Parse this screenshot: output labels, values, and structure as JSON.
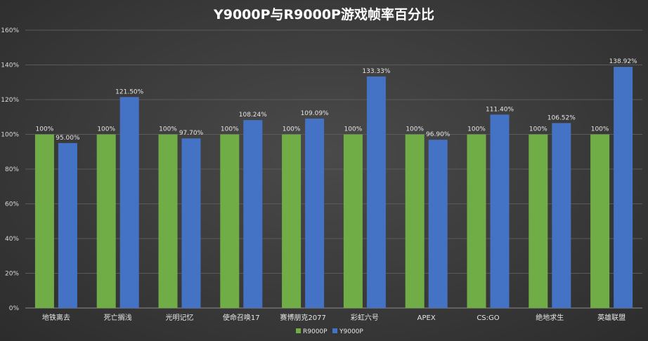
{
  "chart_data": {
    "type": "bar",
    "title": "Y9000P与R9000P游戏帧率百分比",
    "categories": [
      "地铁离去",
      "死亡搁浅",
      "光明记忆",
      "使命召唤17",
      "赛博朋克2077",
      "彩虹六号",
      "APEX",
      "CS:GO",
      "绝地求生",
      "英雄联盟"
    ],
    "series": [
      {
        "name": "R9000P",
        "color": "#70ad47",
        "values": [
          100,
          100,
          100,
          100,
          100,
          100,
          100,
          100,
          100,
          100
        ],
        "labels": [
          "100%",
          "100%",
          "100%",
          "100%",
          "100%",
          "100%",
          "100%",
          "100%",
          "100%",
          "100%"
        ]
      },
      {
        "name": "Y9000P",
        "color": "#4472c4",
        "values": [
          95.0,
          121.5,
          97.7,
          108.24,
          109.09,
          133.33,
          96.9,
          111.4,
          106.52,
          138.92
        ],
        "labels": [
          "95.00%",
          "121.50%",
          "97.70%",
          "108.24%",
          "109.09%",
          "133.33%",
          "96.90%",
          "111.40%",
          "106.52%",
          "138.92%"
        ]
      }
    ],
    "ylim": [
      0,
      160
    ],
    "yticks": [
      0,
      20,
      40,
      60,
      80,
      100,
      120,
      140,
      160
    ],
    "ytick_labels": [
      "0%",
      "20%",
      "40%",
      "60%",
      "80%",
      "100%",
      "120%",
      "140%",
      "160%"
    ],
    "grid": true,
    "legend_position": "bottom-center",
    "xlabel": "",
    "ylabel": ""
  }
}
